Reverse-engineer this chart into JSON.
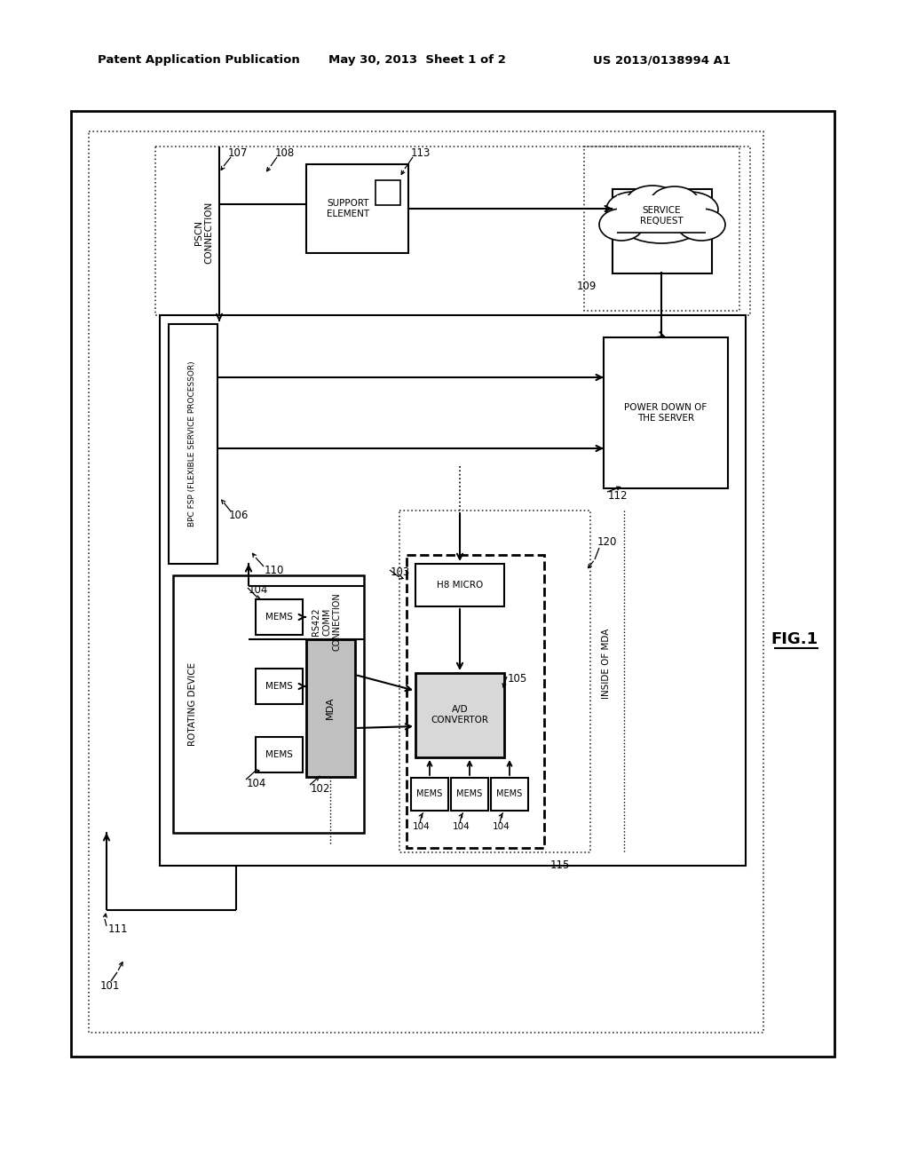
{
  "header_left": "Patent Application Publication",
  "header_mid": "May 30, 2013  Sheet 1 of 2",
  "header_right": "US 2013/0138994 A1",
  "fig_label": "FIG.1",
  "bg_color": "#ffffff"
}
